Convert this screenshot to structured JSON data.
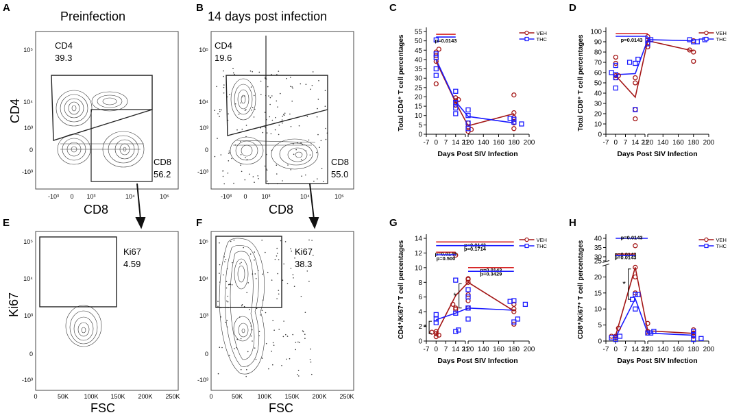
{
  "panels": {
    "A": {
      "letter": "A",
      "title": "Preinfection",
      "x_label": "CD8",
      "y_label": "CD4",
      "gate_cd4_name": "CD4",
      "gate_cd4_value": "39.3",
      "gate_cd8_name": "CD8",
      "gate_cd8_value": "56.2",
      "x_ticks": [
        "-10³",
        "0",
        "10³",
        "10⁴",
        "10⁵"
      ],
      "y_ticks": [
        "10⁵",
        "10⁴",
        "10³",
        "0",
        "-10³"
      ]
    },
    "B": {
      "letter": "B",
      "title": "14 days post infection",
      "x_label": "CD8",
      "gate_cd4_name": "CD4",
      "gate_cd4_value": "19.6",
      "gate_cd8_name": "CD8",
      "gate_cd8_value": "55.0",
      "x_ticks": [
        "-10³",
        "0",
        "10³",
        "10⁴",
        "10⁵"
      ],
      "y_ticks": [
        "10⁵",
        "10⁴",
        "10³",
        "0",
        "-10³"
      ]
    },
    "E": {
      "letter": "E",
      "x_label": "FSC",
      "y_label": "Ki67",
      "gate_name": "Ki67",
      "gate_value": "4.59",
      "x_ticks": [
        "0",
        "50K",
        "100K",
        "150K",
        "200K",
        "250K"
      ],
      "y_ticks": [
        "10⁵",
        "10⁴",
        "10³",
        "0",
        "-10³"
      ]
    },
    "F": {
      "letter": "F",
      "x_label": "FSC",
      "gate_name": "Ki67",
      "gate_value": "38.3",
      "x_ticks": [
        "0",
        "50K",
        "100K",
        "150K",
        "200K",
        "250K"
      ],
      "y_ticks": [
        "10⁵",
        "10⁴",
        "10³",
        "0",
        "-10³"
      ]
    }
  },
  "colors": {
    "veh": "#a31515",
    "thc": "#1a1aff"
  },
  "chart_data": [
    {
      "id": "C",
      "letter": "C",
      "type": "scatter",
      "xlabel": "Days Post  SIV Infection",
      "ylabel": "Total CD4⁺ T cell percentages",
      "x_ticks": [
        -7,
        0,
        7,
        14,
        21,
        120,
        140,
        160,
        180,
        200
      ],
      "y_ticks": [
        0,
        5,
        10,
        15,
        20,
        25,
        30,
        35,
        40,
        45,
        50,
        55
      ],
      "ylim": [
        0,
        55
      ],
      "legend": [
        "VEH",
        "THC"
      ],
      "series": [
        {
          "name": "VEH",
          "color": "#a31515",
          "marker": "circle",
          "points": [
            [
              0,
              27
            ],
            [
              0,
              39
            ],
            [
              0,
              42
            ],
            [
              0,
              44
            ],
            [
              2,
              45.5
            ],
            [
              14,
              15.5
            ],
            [
              14,
              18
            ],
            [
              14,
              19.5
            ],
            [
              16,
              18.5
            ],
            [
              120,
              1.5
            ],
            [
              120,
              4
            ],
            [
              120,
              6
            ],
            [
              124,
              2.5
            ],
            [
              180,
              3
            ],
            [
              180,
              6
            ],
            [
              180,
              9
            ],
            [
              180,
              11.5
            ],
            [
              180,
              21
            ]
          ],
          "mean": [
            [
              0,
              39
            ],
            [
              14,
              17
            ],
            [
              120,
              4.5
            ],
            [
              180,
              11
            ]
          ]
        },
        {
          "name": "THC",
          "color": "#1a1aff",
          "marker": "square",
          "points": [
            [
              0,
              31.5
            ],
            [
              0,
              35
            ],
            [
              0,
              41
            ],
            [
              0,
              43
            ],
            [
              0,
              50.5
            ],
            [
              14,
              11
            ],
            [
              14,
              14
            ],
            [
              14,
              17
            ],
            [
              14,
              23
            ],
            [
              120,
              3
            ],
            [
              120,
              6
            ],
            [
              120,
              10
            ],
            [
              120,
              13
            ],
            [
              175,
              8.5
            ],
            [
              180,
              6.5
            ],
            [
              180,
              8
            ],
            [
              190,
              5.5
            ]
          ],
          "mean": [
            [
              0,
              40
            ],
            [
              14,
              17.5
            ],
            [
              120,
              9.5
            ],
            [
              180,
              6
            ]
          ]
        }
      ],
      "annotations": [
        {
          "text": "p=0.0143",
          "y": 53.5,
          "x1": 0,
          "x2": 14,
          "colors": [
            "#d62020",
            "#1a1aff"
          ]
        }
      ]
    },
    {
      "id": "D",
      "letter": "D",
      "type": "scatter",
      "xlabel": "Days Post  SIV Infection",
      "ylabel": "Total CD8⁺ T cell percentages",
      "x_ticks": [
        -7,
        0,
        7,
        14,
        21,
        120,
        140,
        160,
        180,
        200
      ],
      "y_ticks": [
        0,
        10,
        20,
        30,
        40,
        50,
        60,
        70,
        80,
        90,
        100
      ],
      "ylim": [
        0,
        100
      ],
      "legend": [
        "VEH",
        "THC"
      ],
      "series": [
        {
          "name": "VEH",
          "color": "#a31515",
          "marker": "circle",
          "points": [
            [
              0,
              55
            ],
            [
              0,
              57
            ],
            [
              0,
              69
            ],
            [
              0,
              75
            ],
            [
              2,
              57
            ],
            [
              14,
              15
            ],
            [
              14,
              24
            ],
            [
              14,
              50
            ],
            [
              14,
              55
            ],
            [
              120,
              85
            ],
            [
              120,
              89
            ],
            [
              120,
              92
            ],
            [
              120,
              95
            ],
            [
              175,
              82
            ],
            [
              180,
              71
            ],
            [
              180,
              80
            ],
            [
              180,
              91
            ]
          ],
          "mean": [
            [
              0,
              57
            ],
            [
              14,
              36
            ],
            [
              120,
              91
            ],
            [
              180,
              81
            ]
          ]
        },
        {
          "name": "THC",
          "color": "#1a1aff",
          "marker": "square",
          "points": [
            [
              -3,
              60
            ],
            [
              0,
              45
            ],
            [
              0,
              55
            ],
            [
              0,
              58
            ],
            [
              0,
              67
            ],
            [
              10,
              70
            ],
            [
              14,
              24
            ],
            [
              14,
              69
            ],
            [
              16,
              73
            ],
            [
              120,
              88
            ],
            [
              120,
              92
            ],
            [
              124,
              92
            ],
            [
              175,
              92
            ],
            [
              180,
              90
            ],
            [
              185,
              90
            ],
            [
              195,
              92
            ]
          ],
          "mean": [
            [
              0,
              58
            ],
            [
              14,
              59
            ],
            [
              120,
              92
            ],
            [
              180,
              91
            ]
          ]
        }
      ],
      "annotations": [
        {
          "text": "p=0.0143",
          "y": 98,
          "x1": 0,
          "x2": 120,
          "colors": [
            "#d62020",
            "#1a1aff"
          ]
        }
      ]
    },
    {
      "id": "G",
      "letter": "G",
      "type": "scatter",
      "xlabel": "Days Post  SIV Infection",
      "ylabel": "CD4⁺/Ki67⁺ T cell percentages",
      "x_ticks": [
        -7,
        0,
        7,
        14,
        21,
        120,
        140,
        160,
        180,
        200
      ],
      "y_ticks": [
        0,
        2,
        4,
        6,
        8,
        10,
        12,
        14
      ],
      "ylim": [
        0,
        14
      ],
      "legend": [
        "VEH",
        "THC"
      ],
      "series": [
        {
          "name": "VEH",
          "color": "#a31515",
          "marker": "circle",
          "points": [
            [
              -3,
              1.2
            ],
            [
              0,
              0.6
            ],
            [
              0,
              1.0
            ],
            [
              0,
              1.3
            ],
            [
              2,
              0.8
            ],
            [
              12,
              5.0
            ],
            [
              14,
              4.3
            ],
            [
              14,
              4.5
            ],
            [
              14,
              11.7
            ],
            [
              120,
              4.5
            ],
            [
              120,
              5.5
            ],
            [
              120,
              6.3
            ],
            [
              120,
              8.0
            ],
            [
              120,
              8.4
            ],
            [
              120,
              8.5
            ],
            [
              180,
              2.3
            ],
            [
              180,
              4.0
            ],
            [
              180,
              4.4
            ],
            [
              180,
              5.0
            ]
          ],
          "mean": [
            [
              0,
              1.0
            ],
            [
              14,
              6.2
            ],
            [
              120,
              8.0
            ],
            [
              180,
              4.1
            ]
          ]
        },
        {
          "name": "THC",
          "color": "#1a1aff",
          "marker": "square",
          "points": [
            [
              0,
              2.5
            ],
            [
              0,
              3.0
            ],
            [
              0,
              3.6
            ],
            [
              14,
              1.3
            ],
            [
              14,
              3.8
            ],
            [
              14,
              8.3
            ],
            [
              16,
              1.5
            ],
            [
              120,
              3.0
            ],
            [
              120,
              4.5
            ],
            [
              120,
              4.5
            ],
            [
              120,
              6.0
            ],
            [
              120,
              7.0
            ],
            [
              175,
              5.4
            ],
            [
              180,
              2.6
            ],
            [
              180,
              5.5
            ],
            [
              185,
              3.0
            ],
            [
              195,
              5.0
            ]
          ],
          "mean": [
            [
              0,
              2.9
            ],
            [
              14,
              3.8
            ],
            [
              120,
              4.5
            ],
            [
              180,
              4.2
            ]
          ]
        }
      ],
      "annotations": [
        {
          "text": "p=0.0143",
          "y": 13.5,
          "x1": 0,
          "x2": 180,
          "colors": [
            "#d62020"
          ],
          "label_y": 13.1
        },
        {
          "text": "p=0.1714",
          "y": 13.0,
          "x1": 0,
          "x2": 180,
          "colors": [
            "#1a1aff"
          ],
          "label_y": 12.6
        },
        {
          "text": "p=0.0143",
          "y": 12.1,
          "x1": 0,
          "x2": 14,
          "colors": [
            "#d62020"
          ],
          "label_y": 11.9
        },
        {
          "text": "p=0.500",
          "y": 11.75,
          "x1": 0,
          "x2": 14,
          "colors": [
            "#1a1aff"
          ],
          "label_y": 11.3
        },
        {
          "text": "p=0.0143",
          "y": 10.0,
          "x1": 120,
          "x2": 180,
          "colors": [
            "#d62020"
          ],
          "label_y": 9.7
        },
        {
          "text": "p=0.3429",
          "y": 9.5,
          "x1": 120,
          "x2": 180,
          "colors": [
            "#1a1aff"
          ],
          "label_y": 9.2
        }
      ],
      "significance": [
        {
          "text": "*",
          "x": -5,
          "y1": 1.0,
          "y2": 2.7
        },
        {
          "text": "*",
          "x": 108,
          "y1": 4.5,
          "y2": 7.8
        }
      ]
    },
    {
      "id": "H",
      "letter": "H",
      "type": "scatter",
      "xlabel": "Days Post  SIV Infection",
      "ylabel": "CD8⁺/Ki67⁺ T cell percentages",
      "x_ticks": [
        -7,
        0,
        7,
        14,
        21,
        120,
        140,
        160,
        180,
        200
      ],
      "y_ticks_lower": [
        0,
        5,
        10,
        15,
        20,
        25
      ],
      "y_ticks_upper": [
        30,
        35,
        40
      ],
      "ylim": [
        0,
        40
      ],
      "axis_break": [
        25,
        30
      ],
      "legend": [
        "VEH",
        "THC"
      ],
      "series": [
        {
          "name": "VEH",
          "color": "#a31515",
          "marker": "circle",
          "points": [
            [
              -3,
              1.5
            ],
            [
              0,
              1.0
            ],
            [
              0,
              1.5
            ],
            [
              2,
              4.0
            ],
            [
              14,
              15.0
            ],
            [
              14,
              20.0
            ],
            [
              14,
              23.0
            ],
            [
              14,
              36.0
            ],
            [
              120,
              2.5
            ],
            [
              120,
              3.0
            ],
            [
              120,
              5.5
            ],
            [
              180,
              1.5
            ],
            [
              180,
              2.5
            ],
            [
              180,
              3.5
            ]
          ],
          "mean": [
            [
              0,
              1.8
            ],
            [
              14,
              23
            ],
            [
              120,
              3.2
            ],
            [
              180,
              2.4
            ]
          ]
        },
        {
          "name": "THC",
          "color": "#1a1aff",
          "marker": "square",
          "points": [
            [
              -3,
              1.0
            ],
            [
              0,
              0.5
            ],
            [
              0,
              1.2
            ],
            [
              3,
              1.5
            ],
            [
              12,
              13.0
            ],
            [
              14,
              10.0
            ],
            [
              14,
              14.5
            ],
            [
              16,
              14.5
            ],
            [
              120,
              2.5
            ],
            [
              124,
              2.5
            ],
            [
              128,
              3.0
            ],
            [
              180,
              0.5
            ],
            [
              180,
              2.0
            ],
            [
              180,
              3.0
            ],
            [
              190,
              0.8
            ]
          ],
          "mean": [
            [
              0,
              1.2
            ],
            [
              14,
              13.2
            ],
            [
              120,
              2.5
            ],
            [
              180,
              1.8
            ]
          ]
        }
      ],
      "annotations": [
        {
          "text": "p=0.0143",
          "y": 40,
          "x1": 0,
          "x2": 120,
          "colors": [
            "#1a1aff"
          ],
          "label_y": 40.6
        },
        {
          "text": "p=0.0143",
          "y": 31.5,
          "x1": 0,
          "x2": 14,
          "colors": [
            "#d62020"
          ],
          "label_y": 31.5
        },
        {
          "text": "p=0.0143",
          "y": 30.7,
          "x1": 0,
          "x2": 14,
          "colors": [
            "#1a1aff"
          ],
          "label_y": 29.9
        }
      ],
      "significance": [
        {
          "text": "*",
          "x": 9,
          "y1": 13.0,
          "y2": 22.5
        }
      ]
    }
  ]
}
